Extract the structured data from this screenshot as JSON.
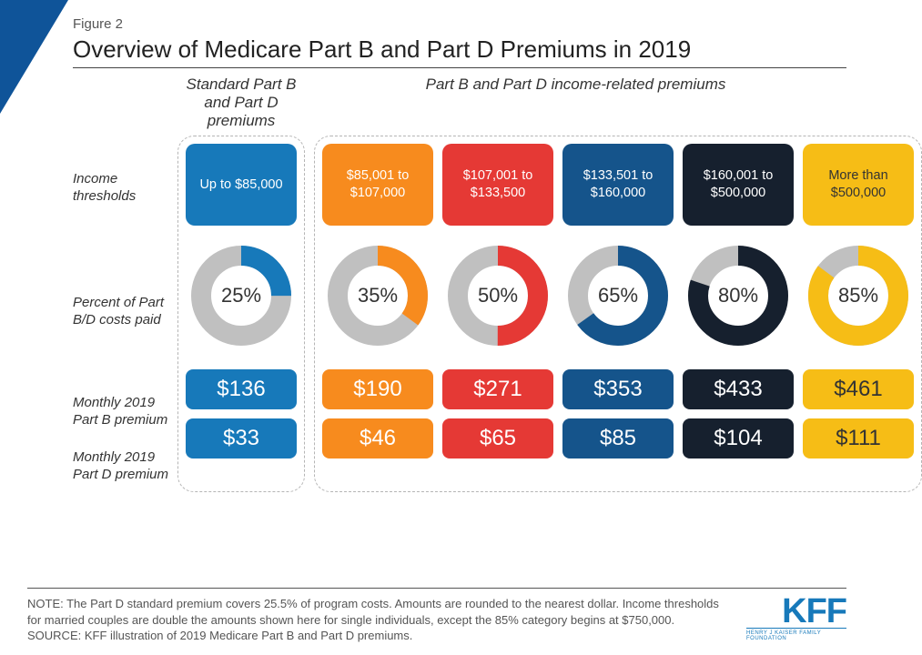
{
  "figure_label": "Figure 2",
  "title": "Overview of Medicare Part B and Part D Premiums in 2019",
  "section_headers": {
    "standard": "Standard Part B and Part D premiums",
    "income": "Part B and Part D income-related premiums"
  },
  "row_labels": {
    "thresholds": "Income thresholds",
    "donut": "Percent of Part B/D costs paid",
    "part_b": "Monthly 2019 Part B premium",
    "part_d": "Monthly 2019 Part D premium"
  },
  "donut": {
    "track_color": "#c0c0c0",
    "stroke_width": 22,
    "radius": 44
  },
  "tiers": [
    {
      "group": "standard",
      "threshold": "Up to $85,000",
      "percent": 25,
      "part_b": "$136",
      "part_d": "$33",
      "color": "#1779ba",
      "text_on_color": "#ffffff"
    },
    {
      "group": "income",
      "threshold": "$85,001 to $107,000",
      "percent": 35,
      "part_b": "$190",
      "part_d": "$46",
      "color": "#f78b1e",
      "text_on_color": "#ffffff"
    },
    {
      "group": "income",
      "threshold": "$107,001 to $133,500",
      "percent": 50,
      "part_b": "$271",
      "part_d": "$65",
      "color": "#e53935",
      "text_on_color": "#ffffff"
    },
    {
      "group": "income",
      "threshold": "$133,501 to $160,000",
      "percent": 65,
      "part_b": "$353",
      "part_d": "$85",
      "color": "#15548b",
      "text_on_color": "#ffffff"
    },
    {
      "group": "income",
      "threshold": "$160,001 to $500,000",
      "percent": 80,
      "part_b": "$433",
      "part_d": "$104",
      "color": "#16202e",
      "text_on_color": "#ffffff"
    },
    {
      "group": "income",
      "threshold": "More than $500,000",
      "percent": 85,
      "part_b": "$461",
      "part_d": "$111",
      "color": "#f6bd16",
      "text_on_color": "#333333"
    }
  ],
  "note": "NOTE: The Part D standard premium covers 25.5% of program costs. Amounts are rounded to the nearest dollar. Income thresholds for married couples are double the amounts shown here for single individuals, except the 85% category begins at $750,000.",
  "source": "SOURCE: KFF illustration of 2019 Medicare Part B and Part D premiums.",
  "logo": {
    "main": "KFF",
    "sub": "HENRY J KAISER FAMILY FOUNDATION",
    "color": "#1779ba"
  }
}
